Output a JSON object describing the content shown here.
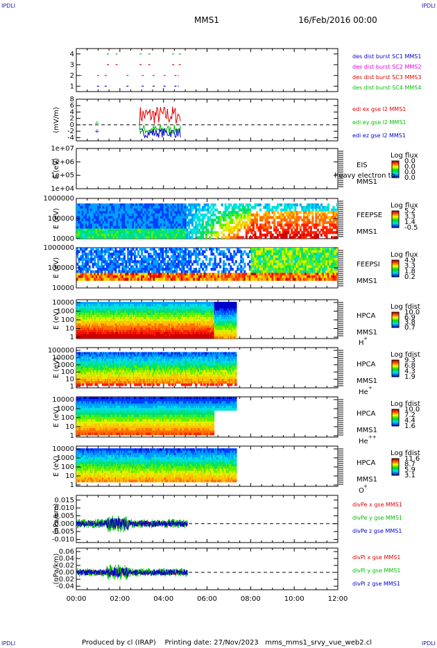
{
  "corners": [
    "IPDLI",
    "IPDLI",
    "IPDLI",
    "IPDLI"
  ],
  "header": {
    "title": "MMS1",
    "date": "16/Feb/2016 00:00"
  },
  "footer": "Produced by cl (IRAP)    Printing date: 27/Nov/2023   mms_mms1_srvy_vue_web2.cl",
  "colors": {
    "red": "#e00000",
    "green": "#00c000",
    "blue": "#0000cc",
    "magenta": "#e000e0",
    "axis": "#000000"
  },
  "chart_data": [
    {
      "id": "burst",
      "type": "scatter",
      "x_labels": [
        "00:00",
        "02:00",
        "04:00",
        "06:00",
        "08:00",
        "10:00",
        "12:00"
      ],
      "ylim": [
        0.5,
        4.5
      ],
      "yticks": [
        "1",
        "2",
        "3",
        "4"
      ],
      "ylabel": "",
      "series": [
        {
          "name": "des dist burst SC1 MMS1",
          "color": "#0000cc",
          "y": 1,
          "segments": [
            [
              0.95,
              1.1
            ],
            [
              1.3,
              1.4
            ],
            [
              2.3,
              2.4
            ],
            [
              3.0,
              3.1
            ],
            [
              3.5,
              3.6
            ],
            [
              4.0,
              4.1
            ],
            [
              4.5,
              4.7
            ]
          ]
        },
        {
          "name": "des dist burst SC2 MMS2",
          "color": "#e000e0",
          "y": 2,
          "segments": [
            [
              0.2,
              0.25
            ],
            [
              0.95,
              1.1
            ],
            [
              1.3,
              1.4
            ],
            [
              2.3,
              2.4
            ],
            [
              3.0,
              3.1
            ],
            [
              3.5,
              3.6
            ],
            [
              4.0,
              4.1
            ],
            [
              4.5,
              4.7
            ]
          ]
        },
        {
          "name": "des dist burst SC3 MMS3",
          "color": "#e00000",
          "y": 3,
          "segments": [
            [
              1.4,
              1.5
            ],
            [
              1.8,
              1.9
            ],
            [
              2.9,
              3.0
            ],
            [
              3.3,
              3.4
            ],
            [
              4.4,
              4.5
            ],
            [
              4.7,
              4.8
            ]
          ]
        },
        {
          "name": "des dist burst SC4 MMS4",
          "color": "#00c000",
          "y": 4,
          "segments": [
            [
              1.4,
              1.5
            ],
            [
              1.8,
              1.9
            ],
            [
              2.9,
              3.0
            ],
            [
              3.3,
              3.4
            ],
            [
              4.4,
              4.5
            ],
            [
              4.7,
              4.8
            ]
          ]
        }
      ]
    },
    {
      "id": "edi",
      "type": "line",
      "ylabel": "(mV/m)",
      "ylim": [
        -5,
        8
      ],
      "yticks": [
        "8",
        "6",
        "4",
        "2",
        "0",
        "-2",
        "-4"
      ],
      "dashed_zero": true,
      "series": [
        {
          "name": "edi ex gse l2 MMS1",
          "color": "#e00000"
        },
        {
          "name": "edi ey gse l2 MMS1",
          "color": "#00c000"
        },
        {
          "name": "edi ez gse l2 MMS1",
          "color": "#0000cc"
        }
      ]
    },
    {
      "id": "eis",
      "type": "heatmap",
      "ylabel": "E (eV)",
      "yticks": [
        "1e+07",
        "1e+06",
        "1e+05",
        "1e+04"
      ],
      "instrument": [
        "EIS",
        "MMS1"
      ],
      "overlap_text": "heavy electron to",
      "cb_title": "Log flux",
      "cb_ticks": [
        "0.0",
        "0.0",
        "0.0",
        "0.0"
      ]
    },
    {
      "id": "feepse",
      "type": "heatmap",
      "ylabel": "E (eV)",
      "yticks": [
        "1000000",
        "100000",
        "10000"
      ],
      "instrument": [
        "FEEPSE",
        "MMS1"
      ],
      "cb_title": "Log flux",
      "cb_ticks": [
        "5.2",
        "3.3",
        "1.4",
        "-0.5"
      ]
    },
    {
      "id": "feepsi",
      "type": "heatmap",
      "ylabel": "E (eV)",
      "yticks": [
        "1000000",
        "100000",
        "10000"
      ],
      "instrument": [
        "FEEPSI",
        "MMS1"
      ],
      "cb_title": "Log flux",
      "cb_ticks": [
        "4.9",
        "3.3",
        "1.8",
        "0.2"
      ]
    },
    {
      "id": "hpca_h",
      "type": "heatmap",
      "ylabel": "E (eV)",
      "yticks": [
        "10000",
        "1000",
        "100",
        "10",
        "1"
      ],
      "instrument": [
        "HPCA",
        "MMS1"
      ],
      "species": "H",
      "charge": "+",
      "cb_title": "Log fdist",
      "cb_ticks": [
        "10.0",
        "6.9",
        "3.8",
        "0.7"
      ]
    },
    {
      "id": "hpca_he",
      "type": "heatmap",
      "ylabel": "E (eV)",
      "yticks": [
        "100000",
        "10000",
        "1000",
        "100",
        "10",
        "1"
      ],
      "instrument": [
        "HPCA",
        "MMS1"
      ],
      "species": "He",
      "charge": "+",
      "cb_title": "Log fdist",
      "cb_ticks": [
        "9.3",
        "6.8",
        "4.3",
        "1.9"
      ]
    },
    {
      "id": "hpca_hepp",
      "type": "heatmap",
      "ylabel": "E (eV)",
      "yticks": [
        "10000",
        "1000",
        "100",
        "10",
        "1"
      ],
      "instrument": [
        "HPCA",
        "MMS1"
      ],
      "species": "He",
      "charge": "++",
      "cb_title": "Log fdist",
      "cb_ticks": [
        "10.0",
        "7.2",
        "4.4",
        "1.6"
      ]
    },
    {
      "id": "hpca_o",
      "type": "heatmap",
      "ylabel": "E (eV)",
      "yticks": [
        "10000",
        "1000",
        "100",
        "10",
        "1"
      ],
      "instrument": [
        "HPCA",
        "MMS1"
      ],
      "species": "O",
      "charge": "+",
      "cb_title": "Log fdist",
      "cb_ticks": [
        "11.6",
        "8.7",
        "5.9",
        "3.1"
      ]
    },
    {
      "id": "divpe",
      "type": "line",
      "ylabel": "(nPa/km)",
      "ylim": [
        -0.012,
        0.018
      ],
      "yticks": [
        "0.015",
        "0.010",
        "0.005",
        "0.000",
        "-0.005",
        "-0.010"
      ],
      "dashed_zero": true,
      "series": [
        {
          "name": "divPe x gse MMS1",
          "color": "#e00000"
        },
        {
          "name": "divPe y gse MMS1",
          "color": "#00c000"
        },
        {
          "name": "divPe z gse MMS1",
          "color": "#0000cc"
        }
      ]
    },
    {
      "id": "divpi",
      "type": "line",
      "ylabel": "(nPa/km)",
      "ylim": [
        -0.05,
        0.07
      ],
      "yticks": [
        "0.06",
        "0.04",
        "0.02",
        "0.00",
        "-0.02",
        "-0.04"
      ],
      "dashed_zero": true,
      "series": [
        {
          "name": "divPi x gse MMS1",
          "color": "#e00000"
        },
        {
          "name": "divPi y gse MMS1",
          "color": "#00c000"
        },
        {
          "name": "divPi z gse MMS1",
          "color": "#0000cc"
        }
      ]
    }
  ]
}
